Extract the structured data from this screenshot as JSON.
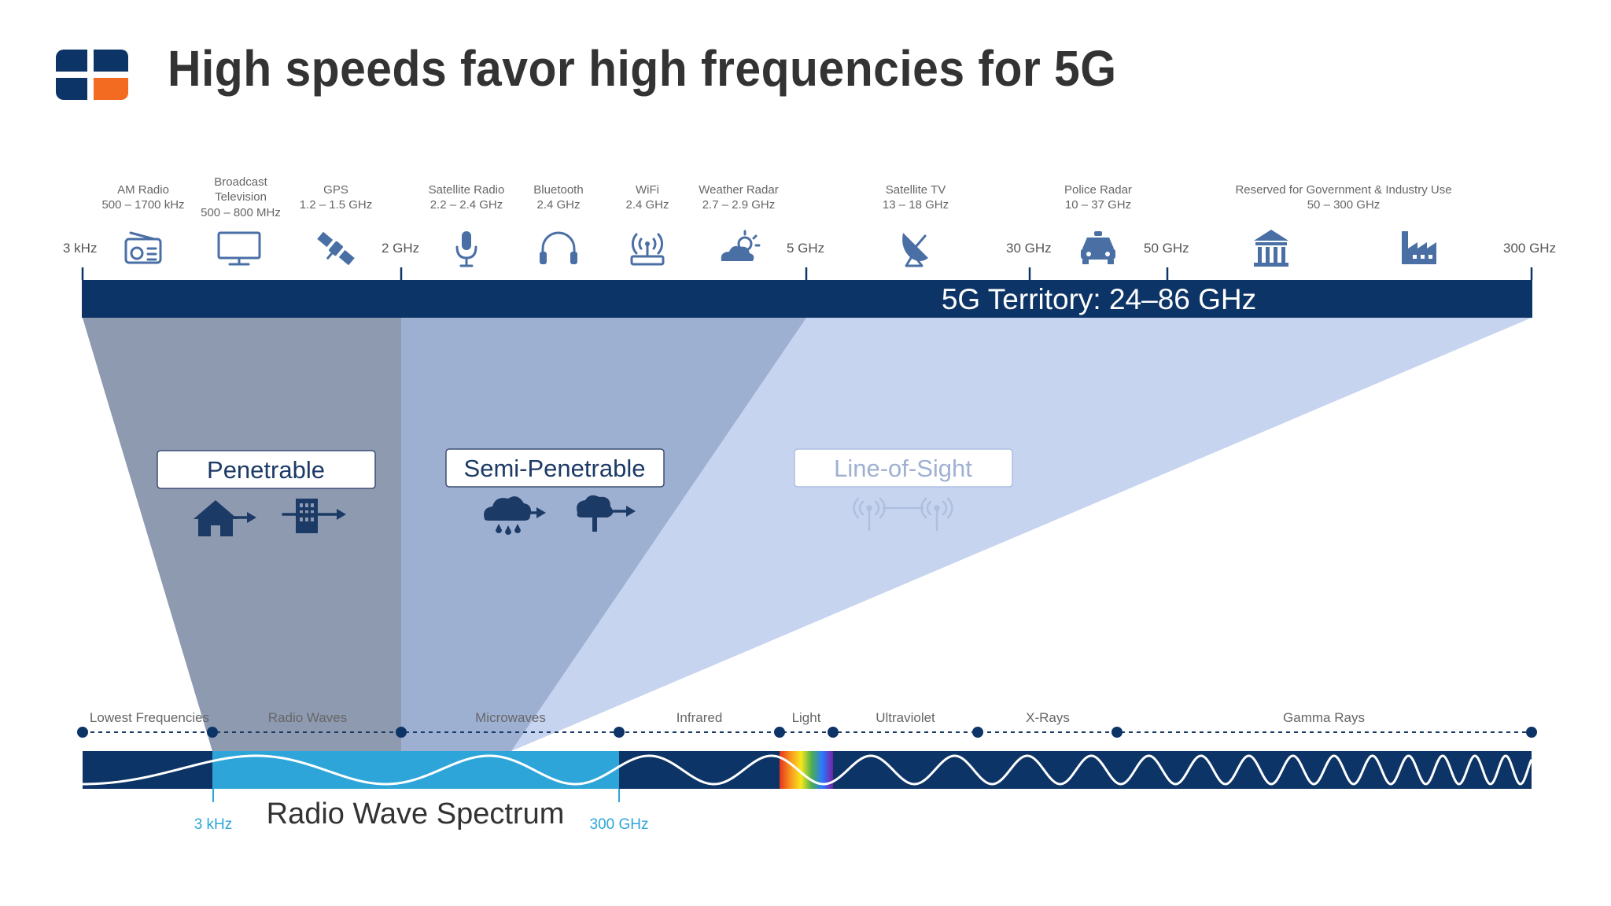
{
  "title": "High speeds favor high frequencies for 5G",
  "services": [
    {
      "name": "AM Radio",
      "range": "500 – 1700 kHz",
      "icon": "radio-icon"
    },
    {
      "name": "Broadcast Television",
      "range": "500 – 800 MHz",
      "icon": "tv-icon"
    },
    {
      "name": "GPS",
      "range": "1.2 – 1.5 GHz",
      "icon": "satellite-icon"
    },
    {
      "name": "Satellite Radio",
      "range": "2.2 – 2.4 GHz",
      "icon": "microphone-icon"
    },
    {
      "name": "Bluetooth",
      "range": "2.4 GHz",
      "icon": "headphones-icon"
    },
    {
      "name": "WiFi",
      "range": "2.4 GHz",
      "icon": "wifi-router-icon"
    },
    {
      "name": "Weather Radar",
      "range": "2.7 – 2.9 GHz",
      "icon": "weather-icon"
    },
    {
      "name": "Satellite TV",
      "range": "13 – 18 GHz",
      "icon": "satellite-dish-icon"
    },
    {
      "name": "Police Radar",
      "range": "10 – 37 GHz",
      "icon": "police-car-icon"
    },
    {
      "name": "Reserved for Government & Industry Use",
      "range": "50 – 300 GHz",
      "icon": "government-building-icon"
    }
  ],
  "freq_ticks": [
    "3 kHz",
    "2 GHz",
    "5 GHz",
    "30 GHz",
    "50 GHz",
    "300 GHz"
  ],
  "territory_label": "5G Territory: 24–86 GHz",
  "categories": [
    {
      "label": "Penetrable",
      "icons": [
        "house-icon",
        "building-icon"
      ]
    },
    {
      "label": "Semi-Penetrable",
      "icons": [
        "rain-cloud-icon",
        "tree-icon"
      ]
    },
    {
      "label": "Line-of-Sight",
      "icons": [
        "antenna-link-icon"
      ]
    }
  ],
  "spectrum_bands": [
    "Lowest Frequencies",
    "Radio Waves",
    "Microwaves",
    "Infrared",
    "Light",
    "Ultraviolet",
    "X-Rays",
    "Gamma Rays"
  ],
  "spectrum_title": "Radio Wave Spectrum",
  "spectrum_min": "3 kHz",
  "spectrum_max": "300 GHz",
  "colors": {
    "navy": "#0d3466",
    "radio_band": "#2ea5d8",
    "penetrable": "#8e9ab0",
    "semi": "#9eb0d2",
    "los": "#c6d4ef",
    "accent_orange": "#f26b21"
  }
}
